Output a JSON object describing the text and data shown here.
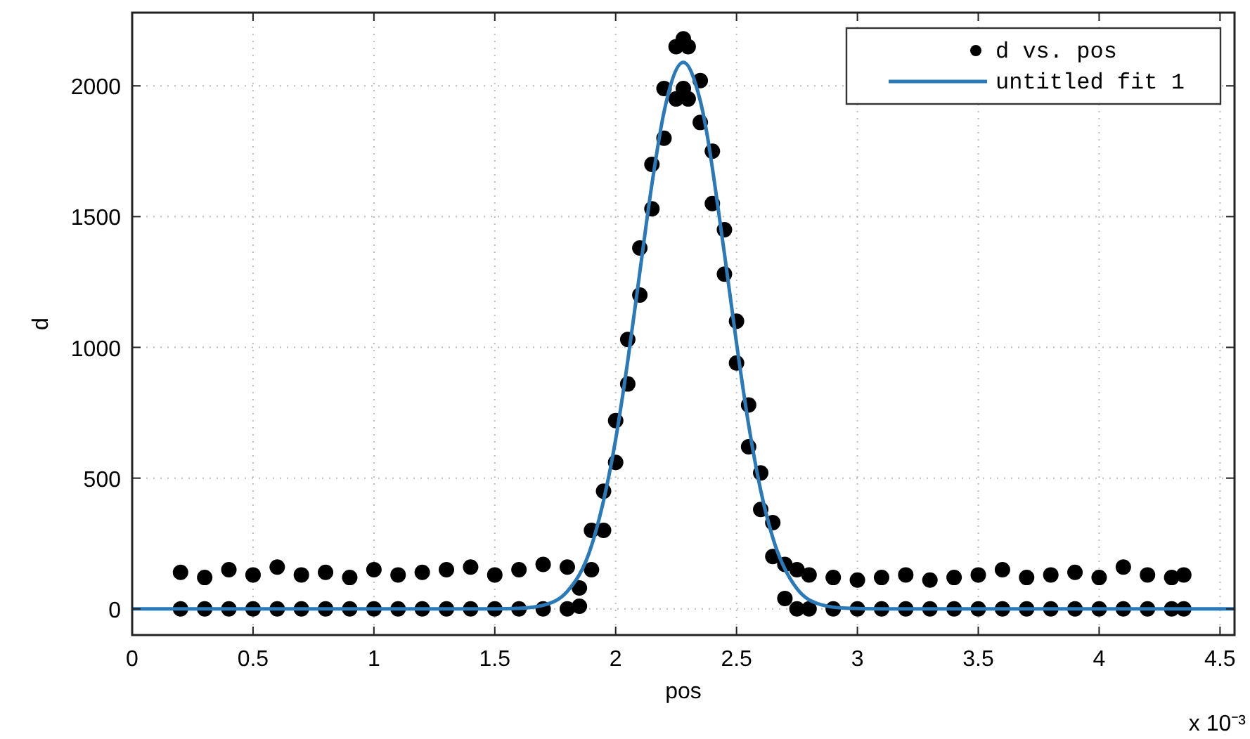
{
  "chart_data": {
    "type": "scatter",
    "xlabel": "pos",
    "ylabel": "d",
    "annotations": [
      "x 10⁻³"
    ],
    "xlim": [
      0,
      4.56
    ],
    "ylim": [
      -100,
      2280
    ],
    "xticks": [
      0,
      0.5,
      1,
      1.5,
      2,
      2.5,
      3,
      3.5,
      4,
      4.5
    ],
    "yticks": [
      0,
      500,
      1000,
      1500,
      2000
    ],
    "grid": true,
    "legend": "top right",
    "series": [
      {
        "name": "d vs. pos",
        "marker": "circle",
        "color": "#000000",
        "x": [
          0.2,
          0.2,
          0.3,
          0.3,
          0.4,
          0.4,
          0.5,
          0.5,
          0.6,
          0.6,
          0.7,
          0.7,
          0.8,
          0.8,
          0.9,
          0.9,
          1.0,
          1.0,
          1.1,
          1.1,
          1.2,
          1.2,
          1.3,
          1.3,
          1.4,
          1.4,
          1.5,
          1.5,
          1.6,
          1.6,
          1.7,
          1.7,
          1.8,
          1.8,
          1.85,
          1.85,
          1.9,
          1.9,
          1.95,
          1.95,
          2.0,
          2.0,
          2.05,
          2.05,
          2.1,
          2.1,
          2.15,
          2.15,
          2.2,
          2.2,
          2.25,
          2.25,
          2.28,
          2.28,
          2.3,
          2.3,
          2.35,
          2.35,
          2.4,
          2.4,
          2.45,
          2.45,
          2.5,
          2.5,
          2.55,
          2.55,
          2.6,
          2.6,
          2.65,
          2.65,
          2.7,
          2.7,
          2.75,
          2.75,
          2.8,
          2.8,
          2.9,
          2.9,
          3.0,
          3.0,
          3.1,
          3.1,
          3.2,
          3.2,
          3.3,
          3.3,
          3.4,
          3.4,
          3.5,
          3.5,
          3.6,
          3.6,
          3.7,
          3.7,
          3.8,
          3.8,
          3.9,
          3.9,
          4.0,
          4.0,
          4.1,
          4.1,
          4.2,
          4.2,
          4.3,
          4.3,
          4.35,
          4.35
        ],
        "values": [
          140,
          0,
          120,
          0,
          150,
          0,
          130,
          0,
          160,
          0,
          130,
          0,
          140,
          0,
          120,
          0,
          150,
          0,
          130,
          0,
          140,
          0,
          150,
          0,
          160,
          0,
          130,
          0,
          150,
          0,
          170,
          0,
          160,
          0,
          80,
          10,
          300,
          150,
          450,
          300,
          720,
          560,
          1030,
          860,
          1380,
          1200,
          1700,
          1530,
          1990,
          1800,
          2150,
          1950,
          2180,
          1990,
          2150,
          1950,
          2020,
          1860,
          1750,
          1550,
          1450,
          1280,
          1100,
          940,
          780,
          620,
          520,
          380,
          330,
          200,
          170,
          40,
          150,
          0,
          130,
          0,
          120,
          0,
          110,
          0,
          120,
          0,
          130,
          0,
          110,
          0,
          120,
          0,
          130,
          0,
          150,
          0,
          120,
          0,
          130,
          0,
          140,
          0,
          120,
          0,
          160,
          0,
          130,
          0,
          120,
          0,
          130,
          0
        ]
      },
      {
        "name": "untitled fit 1",
        "type": "line",
        "color": "#2a7ab9",
        "line_style": "solid",
        "marker": "none",
        "x": [
          0,
          1.5,
          1.6,
          1.7,
          1.8,
          1.9,
          2.0,
          2.05,
          2.1,
          2.15,
          2.2,
          2.28,
          2.35,
          2.45,
          2.5,
          2.55,
          2.6,
          2.65,
          2.75,
          2.85,
          2.95,
          3.1,
          4.56
        ],
        "values": [
          0,
          0,
          2,
          14,
          67,
          241,
          648,
          948,
          1288,
          1624,
          1900,
          2090,
          1943,
          1358,
          1016,
          704,
          453,
          272,
          77,
          16,
          3,
          0,
          0
        ]
      }
    ]
  }
}
